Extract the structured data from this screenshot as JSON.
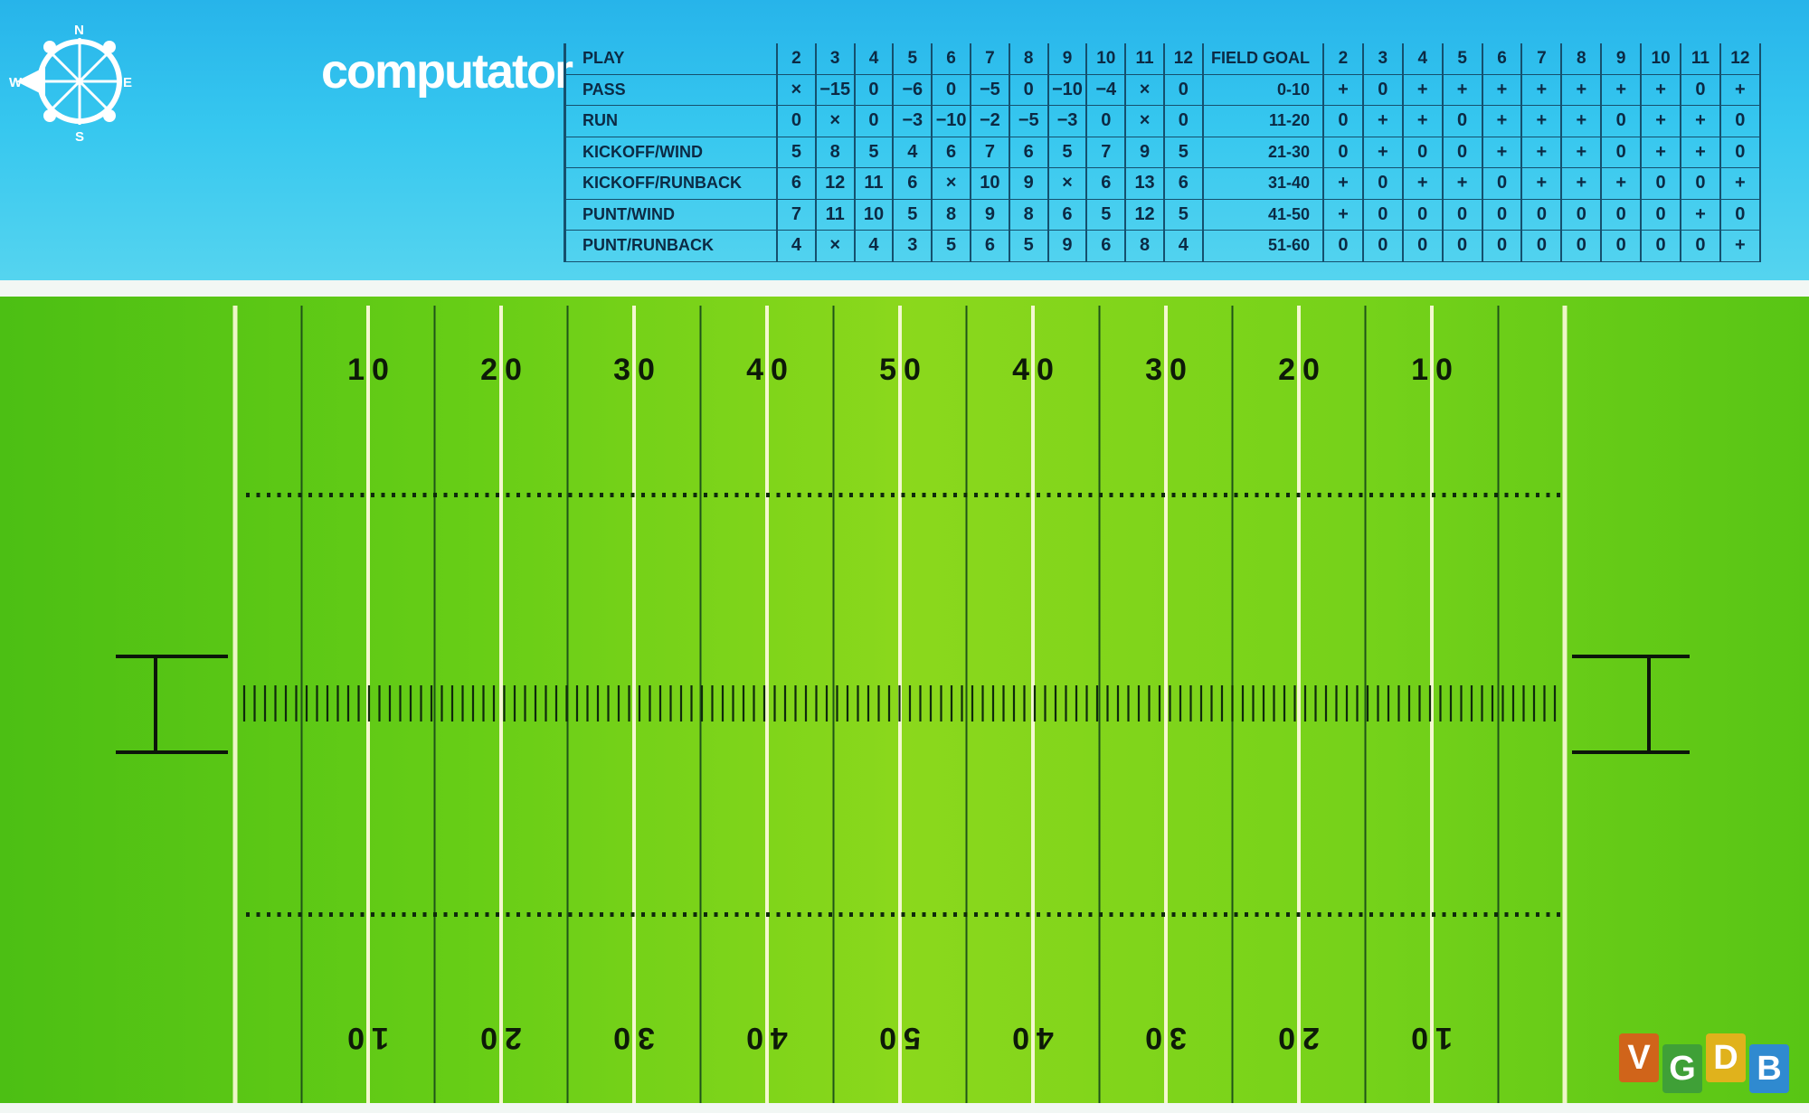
{
  "brand": "computator",
  "compass": {
    "n": "N",
    "s": "S",
    "e": "E",
    "w": "W"
  },
  "play_table": {
    "header_label": "PLAY",
    "columns": [
      "2",
      "3",
      "4",
      "5",
      "6",
      "7",
      "8",
      "9",
      "10",
      "11",
      "12"
    ],
    "rows": [
      {
        "label": "PASS",
        "values": [
          "×",
          "−15",
          "0",
          "−6",
          "0",
          "−5",
          "0",
          "−10",
          "−4",
          "×",
          "0"
        ]
      },
      {
        "label": "RUN",
        "values": [
          "0",
          "×",
          "0",
          "−3",
          "−10",
          "−2",
          "−5",
          "−3",
          "0",
          "×",
          "0"
        ]
      },
      {
        "label": "KICKOFF/WIND",
        "values": [
          "5",
          "8",
          "5",
          "4",
          "6",
          "7",
          "6",
          "5",
          "7",
          "9",
          "5"
        ]
      },
      {
        "label": "KICKOFF/RUNBACK",
        "values": [
          "6",
          "12",
          "11",
          "6",
          "×",
          "10",
          "9",
          "×",
          "6",
          "13",
          "6"
        ]
      },
      {
        "label": "PUNT/WIND",
        "values": [
          "7",
          "11",
          "10",
          "5",
          "8",
          "9",
          "8",
          "6",
          "5",
          "12",
          "5"
        ]
      },
      {
        "label": "PUNT/RUNBACK",
        "values": [
          "4",
          "×",
          "4",
          "3",
          "5",
          "6",
          "5",
          "9",
          "6",
          "8",
          "4"
        ]
      }
    ]
  },
  "fg_table": {
    "header_label": "FIELD GOAL",
    "columns": [
      "2",
      "3",
      "4",
      "5",
      "6",
      "7",
      "8",
      "9",
      "10",
      "11",
      "12"
    ],
    "rows": [
      {
        "label": "0-10",
        "values": [
          "+",
          "0",
          "+",
          "+",
          "+",
          "+",
          "+",
          "+",
          "+",
          "0",
          "+"
        ]
      },
      {
        "label": "11-20",
        "values": [
          "0",
          "+",
          "+",
          "0",
          "+",
          "+",
          "+",
          "0",
          "+",
          "+",
          "0"
        ]
      },
      {
        "label": "21-30",
        "values": [
          "0",
          "+",
          "0",
          "0",
          "+",
          "+",
          "+",
          "0",
          "+",
          "+",
          "0"
        ]
      },
      {
        "label": "31-40",
        "values": [
          "+",
          "0",
          "+",
          "+",
          "0",
          "+",
          "+",
          "+",
          "0",
          "0",
          "+"
        ]
      },
      {
        "label": "41-50",
        "values": [
          "+",
          "0",
          "0",
          "0",
          "0",
          "0",
          "0",
          "0",
          "0",
          "+",
          "0"
        ]
      },
      {
        "label": "51-60",
        "values": [
          "0",
          "0",
          "0",
          "0",
          "0",
          "0",
          "0",
          "0",
          "0",
          "0",
          "+"
        ]
      }
    ]
  },
  "field": {
    "yard_numbers": [
      "10",
      "20",
      "30",
      "40",
      "50",
      "40",
      "30",
      "20",
      "10"
    ]
  },
  "watermark": {
    "letters": [
      "V",
      "G",
      "D",
      "B"
    ],
    "colors": [
      "#d0641a",
      "#3fa037",
      "#e0b21c",
      "#2f8ad0"
    ]
  },
  "colors": {
    "banner": "#2ec0ec",
    "field": "#7ed21a",
    "table_ink": "#0c2a44",
    "field_ink": "#0d1a08"
  }
}
